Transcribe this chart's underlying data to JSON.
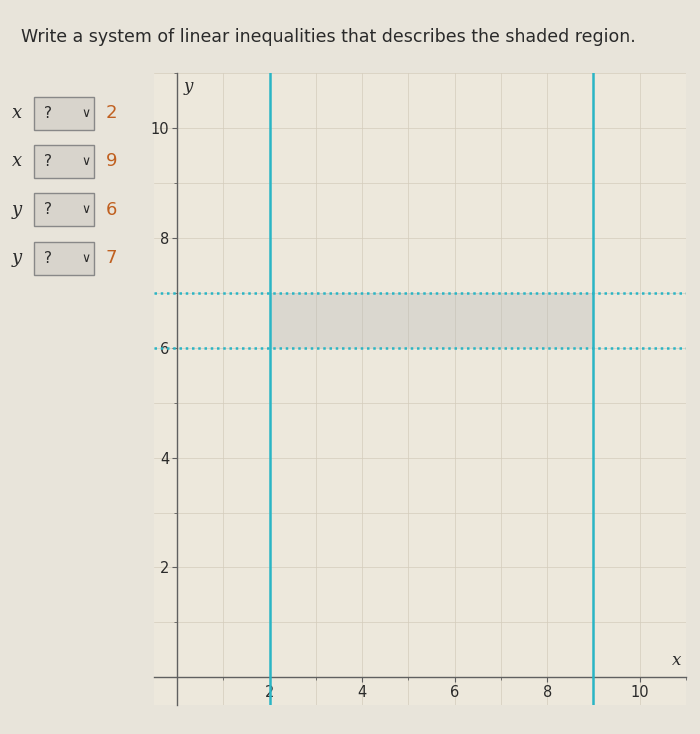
{
  "title": "Write a system of linear inequalities that describes the shaded region.",
  "title_fontsize": 12.5,
  "inequalities": [
    {
      "var": "x",
      "val": 2
    },
    {
      "var": "x",
      "val": 9
    },
    {
      "var": "y",
      "val": 6
    },
    {
      "var": "y",
      "val": 7
    }
  ],
  "x_line1": 2,
  "x_line2": 9,
  "y_line1": 6,
  "y_line2": 7,
  "xlim": [
    -0.5,
    11
  ],
  "ylim": [
    -0.5,
    11
  ],
  "xticks": [
    2,
    4,
    6,
    8,
    10
  ],
  "yticks": [
    2,
    4,
    6,
    8,
    10
  ],
  "xlabel": "x",
  "ylabel": "y",
  "line_color": "#2ab5c5",
  "shade_color": "#b8b8b8",
  "shade_alpha": 0.35,
  "plot_bg": "#ede8dc",
  "grid_color": "#d4ccbc",
  "fig_bg": "#e8e4da",
  "box_bg": "#d8d4cc",
  "box_border": "#888888",
  "text_color": "#2a2a2a",
  "num_color": "#c06020",
  "tick_fontsize": 10.5,
  "axis_label_fontsize": 12,
  "var_fontsize": 13,
  "num_fontsize": 13
}
